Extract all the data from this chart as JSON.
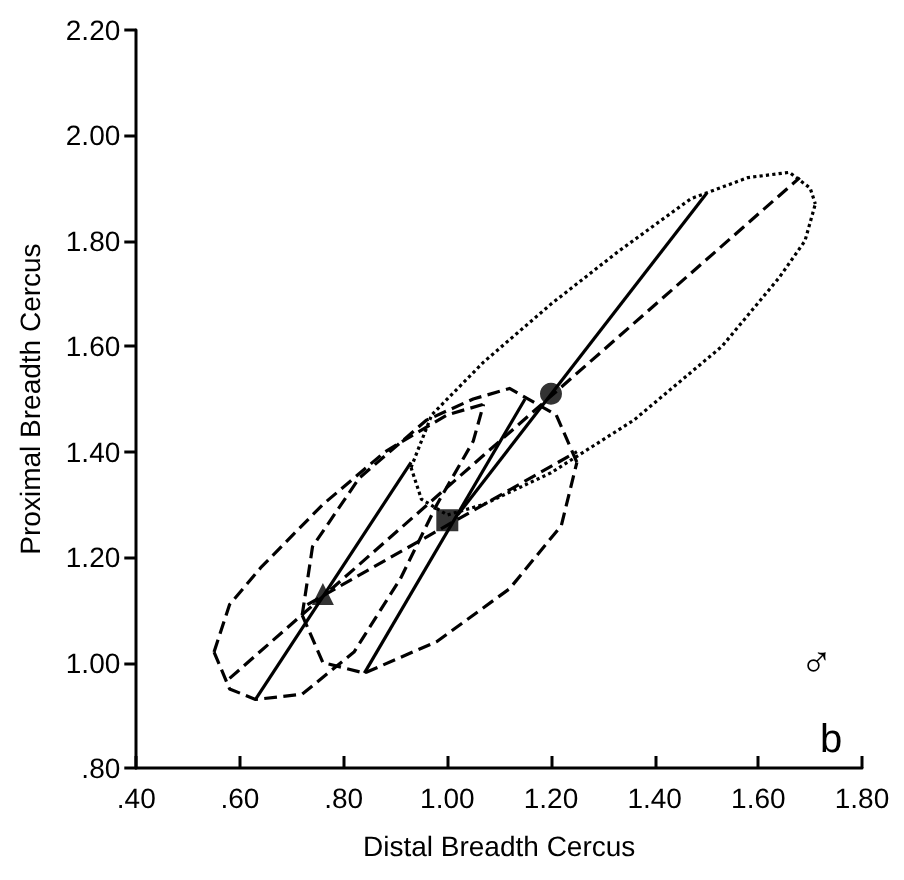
{
  "chart_data": {
    "type": "line",
    "xlabel": "Distal Breadth Cercus",
    "ylabel": "Proximal Breadth Cercus",
    "xlim": [
      0.4,
      1.8
    ],
    "ylim": [
      0.8,
      2.2
    ],
    "xticks": [
      {
        "value": 0.4,
        "label": ".40"
      },
      {
        "value": 0.6,
        "label": ".60"
      },
      {
        "value": 0.8,
        "label": ".80"
      },
      {
        "value": 1.0,
        "label": "1.00"
      },
      {
        "value": 1.2,
        "label": "1.20"
      },
      {
        "value": 1.4,
        "label": "1.40"
      },
      {
        "value": 1.6,
        "label": "1.60"
      },
      {
        "value": 1.8,
        "label": "1.80"
      }
    ],
    "yticks": [
      {
        "value": 0.8,
        "label": ".80"
      },
      {
        "value": 1.0,
        "label": "1.00"
      },
      {
        "value": 1.2,
        "label": "1.20"
      },
      {
        "value": 1.4,
        "label": "1.40"
      },
      {
        "value": 1.6,
        "label": "1.60"
      },
      {
        "value": 1.8,
        "label": "1.80"
      },
      {
        "value": 2.0,
        "label": "2.00"
      },
      {
        "value": 2.2,
        "label": "2.20"
      }
    ],
    "grid": false,
    "annotations": [
      "♂",
      "b"
    ],
    "series": [
      {
        "line_style": "dotted",
        "marker": "none",
        "color": "#000000",
        "x": [
          0.93,
          0.97,
          1.07,
          1.2,
          1.33,
          1.47,
          1.58,
          1.66,
          1.7,
          1.71
        ],
        "values": [
          1.37,
          1.47,
          1.57,
          1.68,
          1.78,
          1.88,
          1.92,
          1.93,
          1.9,
          1.87
        ]
      },
      {
        "line_style": "dotted",
        "marker": "none",
        "color": "#000000",
        "x": [
          0.93,
          0.95,
          1.0,
          1.07,
          1.2,
          1.36,
          1.53,
          1.64,
          1.69,
          1.71
        ],
        "values": [
          1.37,
          1.31,
          1.28,
          1.3,
          1.36,
          1.46,
          1.6,
          1.73,
          1.8,
          1.87
        ]
      },
      {
        "line_style": "dashed",
        "marker": "none",
        "color": "#000000",
        "x": [
          0.72,
          0.74,
          0.83,
          0.96,
          1.05,
          1.12,
          1.21,
          1.25
        ],
        "values": [
          1.09,
          1.22,
          1.35,
          1.46,
          1.5,
          1.52,
          1.47,
          1.38
        ]
      },
      {
        "line_style": "dashed",
        "marker": "none",
        "color": "#000000",
        "x": [
          0.72,
          0.76,
          0.84,
          0.98,
          1.12,
          1.22,
          1.25
        ],
        "values": [
          1.09,
          1.0,
          0.98,
          1.04,
          1.14,
          1.26,
          1.38
        ]
      },
      {
        "line_style": "dashed",
        "marker": "none",
        "color": "#000000",
        "x": [
          0.55,
          0.58,
          0.64,
          0.76,
          0.88,
          1.0,
          1.07
        ],
        "values": [
          1.02,
          1.11,
          1.18,
          1.3,
          1.4,
          1.47,
          1.49
        ]
      },
      {
        "line_style": "dashed",
        "marker": "none",
        "color": "#000000",
        "x": [
          0.55,
          0.58,
          0.63,
          0.72,
          0.82,
          0.91,
          0.98,
          1.05,
          1.07
        ],
        "values": [
          1.02,
          0.95,
          0.93,
          0.94,
          1.02,
          1.16,
          1.3,
          1.42,
          1.49
        ]
      },
      {
        "line_style": "dashed",
        "marker": "none",
        "color": "#000000",
        "x": [
          0.58,
          1.68
        ],
        "values": [
          0.97,
          1.92
        ]
      },
      {
        "line_style": "dashed",
        "marker": "none",
        "color": "#000000",
        "x": [
          0.73,
          1.25
        ],
        "values": [
          1.11,
          1.4
        ]
      },
      {
        "line_style": "solid",
        "marker": "none",
        "color": "#000000",
        "x": [
          1.02,
          1.5
        ],
        "values": [
          1.28,
          1.89
        ]
      },
      {
        "line_style": "solid",
        "marker": "none",
        "color": "#000000",
        "x": [
          0.84,
          1.15
        ],
        "values": [
          0.98,
          1.5
        ]
      },
      {
        "line_style": "solid",
        "marker": "none",
        "color": "#000000",
        "x": [
          0.63,
          0.93
        ],
        "values": [
          0.93,
          1.38
        ]
      },
      {
        "type": "scatter",
        "marker": "triangle",
        "color": "#000000",
        "x": [
          0.76
        ],
        "values": [
          1.13
        ]
      },
      {
        "type": "scatter",
        "marker": "square",
        "color": "#000000",
        "x": [
          1.0
        ],
        "values": [
          1.27
        ]
      },
      {
        "type": "scatter",
        "marker": "circle",
        "color": "#000000",
        "x": [
          1.2
        ],
        "values": [
          1.51
        ]
      }
    ]
  }
}
